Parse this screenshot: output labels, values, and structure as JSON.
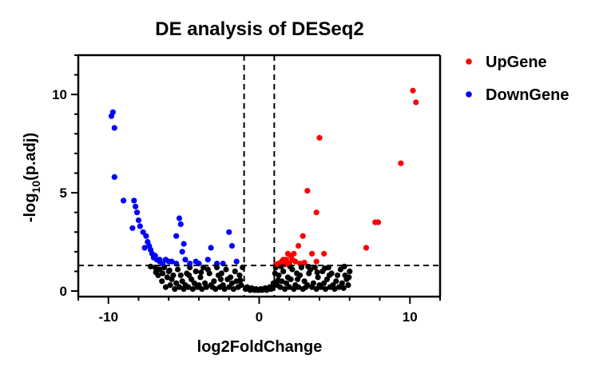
{
  "chart_data": {
    "type": "scatter",
    "title": "DE analysis of DESeq2",
    "xlabel": "log2FoldChange",
    "ylabel_prefix": "-log",
    "ylabel_sub": "10",
    "ylabel_suffix": "(p.adj)",
    "xlim": [
      -12,
      12
    ],
    "ylim": [
      0,
      12
    ],
    "x_ticks": [
      -10,
      0,
      10
    ],
    "y_ticks": [
      0,
      5,
      10
    ],
    "x_tick_labels": [
      "-10",
      "0",
      "10"
    ],
    "y_tick_labels": [
      "0",
      "5",
      "10"
    ],
    "thresholds": {
      "log2fc": [
        -1,
        1
      ],
      "neg_log10_padj": 1.3
    },
    "legend_position": "right",
    "colors": {
      "up": "#ff0000",
      "down": "#0000ff",
      "ns": "#000000"
    },
    "series": [
      {
        "name": "UpGene",
        "color": "#ff0000",
        "points": [
          [
            10.2,
            10.2
          ],
          [
            10.4,
            9.6
          ],
          [
            9.4,
            6.5
          ],
          [
            4.0,
            7.8
          ],
          [
            3.2,
            5.1
          ],
          [
            3.8,
            4.0
          ],
          [
            7.9,
            3.5
          ],
          [
            7.7,
            3.5
          ],
          [
            7.1,
            2.2
          ],
          [
            2.9,
            2.8
          ],
          [
            2.6,
            2.3
          ],
          [
            3.5,
            1.9
          ],
          [
            4.3,
            1.9
          ],
          [
            2.3,
            1.9
          ],
          [
            2.1,
            1.8
          ],
          [
            1.9,
            1.9
          ],
          [
            1.8,
            1.6
          ],
          [
            1.6,
            1.6
          ],
          [
            1.5,
            1.5
          ],
          [
            1.3,
            1.4
          ],
          [
            2.4,
            1.5
          ],
          [
            2.0,
            1.4
          ],
          [
            1.1,
            1.35
          ],
          [
            2.7,
            1.4
          ],
          [
            3.0,
            1.45
          ],
          [
            1.7,
            1.35
          ],
          [
            2.2,
            1.6
          ],
          [
            3.8,
            1.5
          ]
        ]
      },
      {
        "name": "DownGene",
        "color": "#0000ff",
        "points": [
          [
            -9.7,
            9.1
          ],
          [
            -9.8,
            8.9
          ],
          [
            -9.6,
            8.3
          ],
          [
            -9.6,
            5.8
          ],
          [
            -9.0,
            4.6
          ],
          [
            -8.3,
            4.6
          ],
          [
            -8.2,
            4.3
          ],
          [
            -8.1,
            4.0
          ],
          [
            -8.4,
            3.2
          ],
          [
            -8.0,
            3.6
          ],
          [
            -7.9,
            3.3
          ],
          [
            -7.7,
            3.0
          ],
          [
            -7.5,
            2.8
          ],
          [
            -7.4,
            2.5
          ],
          [
            -7.3,
            2.3
          ],
          [
            -7.2,
            2.1
          ],
          [
            -7.1,
            1.9
          ],
          [
            -6.9,
            1.8
          ],
          [
            -6.8,
            1.6
          ],
          [
            -6.6,
            1.5
          ],
          [
            -6.4,
            1.4
          ],
          [
            -6.2,
            1.6
          ],
          [
            -6.0,
            1.5
          ],
          [
            -5.5,
            1.4
          ],
          [
            -5.3,
            3.7
          ],
          [
            -5.2,
            3.4
          ],
          [
            -5.5,
            2.8
          ],
          [
            -5.0,
            2.4
          ],
          [
            -5.1,
            2.0
          ],
          [
            -4.9,
            1.6
          ],
          [
            -4.6,
            1.4
          ],
          [
            -4.2,
            1.5
          ],
          [
            -3.2,
            2.2
          ],
          [
            -3.4,
            1.6
          ],
          [
            -2.8,
            1.4
          ],
          [
            -2.0,
            3.0
          ],
          [
            -1.8,
            2.3
          ],
          [
            -1.5,
            1.5
          ],
          [
            -7.6,
            2.2
          ],
          [
            -7.0,
            1.7
          ],
          [
            -6.6,
            1.6
          ],
          [
            -5.8,
            1.5
          ],
          [
            -4.0,
            1.4
          ],
          [
            -2.4,
            1.4
          ]
        ]
      },
      {
        "name": "",
        "color": "#000000",
        "points": [
          [
            -0.9,
            0.1
          ],
          [
            -0.8,
            0.2
          ],
          [
            -0.7,
            0.1
          ],
          [
            -0.6,
            0.05
          ],
          [
            -0.5,
            0.15
          ],
          [
            -0.4,
            0.1
          ],
          [
            -0.3,
            0.05
          ],
          [
            -0.2,
            0.1
          ],
          [
            -0.1,
            0.05
          ],
          [
            0.0,
            0.05
          ],
          [
            0.1,
            0.1
          ],
          [
            0.2,
            0.05
          ],
          [
            0.3,
            0.1
          ],
          [
            0.4,
            0.15
          ],
          [
            0.5,
            0.05
          ],
          [
            0.6,
            0.1
          ],
          [
            0.7,
            0.2
          ],
          [
            0.8,
            0.1
          ],
          [
            0.9,
            0.15
          ],
          [
            -1.2,
            0.3
          ],
          [
            -1.5,
            0.5
          ],
          [
            -1.8,
            0.4
          ],
          [
            -2.1,
            0.6
          ],
          [
            -2.4,
            0.3
          ],
          [
            -2.7,
            0.8
          ],
          [
            -3.0,
            0.5
          ],
          [
            -3.3,
            0.9
          ],
          [
            -3.6,
            0.4
          ],
          [
            -3.9,
            0.7
          ],
          [
            -4.2,
            1.0
          ],
          [
            -4.5,
            0.6
          ],
          [
            -4.8,
            0.9
          ],
          [
            -5.1,
            0.5
          ],
          [
            -5.4,
            1.1
          ],
          [
            -5.7,
            0.8
          ],
          [
            -6.0,
            1.0
          ],
          [
            -6.3,
            1.2
          ],
          [
            -6.6,
            1.1
          ],
          [
            -6.9,
            1.2
          ],
          [
            -7.2,
            1.25
          ],
          [
            -1.3,
            0.8
          ],
          [
            -1.6,
            1.0
          ],
          [
            -1.9,
            0.7
          ],
          [
            -2.2,
            1.1
          ],
          [
            -2.5,
            0.9
          ],
          [
            -2.8,
            1.2
          ],
          [
            -3.1,
            0.2
          ],
          [
            -3.4,
            1.1
          ],
          [
            -3.7,
            1.2
          ],
          [
            -4.0,
            0.3
          ],
          [
            -4.3,
            0.4
          ],
          [
            -4.6,
            1.2
          ],
          [
            -4.9,
            0.3
          ],
          [
            -5.2,
            0.8
          ],
          [
            -5.5,
            0.4
          ],
          [
            -5.8,
            0.6
          ],
          [
            -6.1,
            0.7
          ],
          [
            -6.4,
            0.9
          ],
          [
            -6.7,
            0.8
          ],
          [
            -1.1,
            1.2
          ],
          [
            -1.4,
            0.2
          ],
          [
            -1.7,
            0.1
          ],
          [
            -2.0,
            0.2
          ],
          [
            -2.3,
            0.1
          ],
          [
            -2.6,
            0.2
          ],
          [
            -2.9,
            0.1
          ],
          [
            -3.2,
            0.3
          ],
          [
            -3.5,
            0.2
          ],
          [
            -3.8,
            0.1
          ],
          [
            -4.1,
            0.2
          ],
          [
            -4.4,
            0.1
          ],
          [
            -4.7,
            0.2
          ],
          [
            -5.0,
            0.1
          ],
          [
            -5.3,
            0.2
          ],
          [
            -5.6,
            0.1
          ],
          [
            -5.9,
            0.3
          ],
          [
            -6.2,
            0.2
          ],
          [
            -1.25,
            0.55
          ],
          [
            -2.55,
            0.6
          ],
          [
            -3.85,
            0.95
          ],
          [
            -4.65,
            0.8
          ],
          [
            -5.95,
            1.05
          ],
          [
            -6.45,
            0.5
          ],
          [
            -6.85,
            0.95
          ],
          [
            1.2,
            0.3
          ],
          [
            1.5,
            0.5
          ],
          [
            1.8,
            0.4
          ],
          [
            2.1,
            0.6
          ],
          [
            2.4,
            0.3
          ],
          [
            2.7,
            0.8
          ],
          [
            3.0,
            0.5
          ],
          [
            3.3,
            0.9
          ],
          [
            3.6,
            0.4
          ],
          [
            3.9,
            0.7
          ],
          [
            4.2,
            1.0
          ],
          [
            4.5,
            0.6
          ],
          [
            4.8,
            0.9
          ],
          [
            5.1,
            0.5
          ],
          [
            5.4,
            1.1
          ],
          [
            5.7,
            0.8
          ],
          [
            6.0,
            1.0
          ],
          [
            1.3,
            0.8
          ],
          [
            1.6,
            1.0
          ],
          [
            1.9,
            0.7
          ],
          [
            2.2,
            1.1
          ],
          [
            2.5,
            0.9
          ],
          [
            2.8,
            1.2
          ],
          [
            3.1,
            0.2
          ],
          [
            3.4,
            1.1
          ],
          [
            3.7,
            1.2
          ],
          [
            4.0,
            0.3
          ],
          [
            4.3,
            0.4
          ],
          [
            4.6,
            1.2
          ],
          [
            4.9,
            0.3
          ],
          [
            5.2,
            0.8
          ],
          [
            5.5,
            0.4
          ],
          [
            5.8,
            0.6
          ],
          [
            1.1,
            1.2
          ],
          [
            1.4,
            0.2
          ],
          [
            1.7,
            0.1
          ],
          [
            2.0,
            0.2
          ],
          [
            2.3,
            0.1
          ],
          [
            2.6,
            0.2
          ],
          [
            2.9,
            0.1
          ],
          [
            3.2,
            0.3
          ],
          [
            3.5,
            0.2
          ],
          [
            3.8,
            0.1
          ],
          [
            4.1,
            0.2
          ],
          [
            4.4,
            0.1
          ],
          [
            4.7,
            0.2
          ],
          [
            5.0,
            0.1
          ],
          [
            5.3,
            0.2
          ],
          [
            5.6,
            0.15
          ],
          [
            5.9,
            0.3
          ],
          [
            1.25,
            0.55
          ],
          [
            2.55,
            0.6
          ],
          [
            3.85,
            0.95
          ],
          [
            4.65,
            0.8
          ],
          [
            5.95,
            0.7
          ],
          [
            1.05,
            0.9
          ],
          [
            1.45,
            1.25
          ],
          [
            2.05,
            1.25
          ],
          [
            3.25,
            1.25
          ],
          [
            4.35,
            1.15
          ],
          [
            5.65,
            1.25
          ],
          [
            0.95,
            0.4
          ]
        ]
      }
    ]
  }
}
